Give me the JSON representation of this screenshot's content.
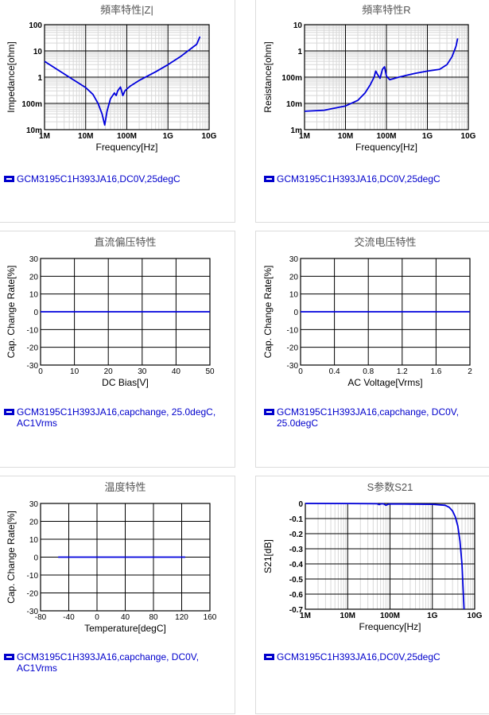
{
  "colors": {
    "curve": "#0000dd",
    "grid": "#d8d8d8",
    "majorgrid": "#000000",
    "legend": "#0000cc"
  },
  "chart_data": [
    {
      "id": "impedance",
      "type": "line",
      "title": "頻率特性|Z|",
      "xlabel": "Frequency[Hz]",
      "ylabel": "Impedance[ohm]",
      "xscale": "log",
      "yscale": "log",
      "xlim": [
        1000000,
        10000000000
      ],
      "ylim": [
        0.01,
        100
      ],
      "xticks": [
        "1M",
        "10M",
        "100M",
        "1G",
        "10G"
      ],
      "yticks": [
        "100",
        "10",
        "1",
        "100m",
        "10m"
      ],
      "grid": true,
      "legend": "GCM3195C1H393JA16,DC0V,25degC",
      "series": [
        {
          "x": [
            1000000.0,
            2000000.0,
            5000000.0,
            10000000.0,
            15000000.0,
            20000000.0,
            25000000.0,
            29000000.0,
            33000000.0,
            40000000.0,
            50000000.0,
            55000000.0,
            60000000.0,
            70000000.0,
            80000000.0,
            90000000.0,
            100000000.0,
            120000000.0,
            200000000.0,
            500000000.0,
            1000000000.0,
            2000000000.0,
            5000000000.0,
            6000000000.0
          ],
          "y": [
            4,
            2,
            0.8,
            0.4,
            0.22,
            0.1,
            0.04,
            0.015,
            0.05,
            0.15,
            0.25,
            0.2,
            0.3,
            0.42,
            0.2,
            0.3,
            0.35,
            0.45,
            0.75,
            1.6,
            3,
            6,
            18,
            35
          ]
        }
      ]
    },
    {
      "id": "resistance",
      "type": "line",
      "title": "頻率特性R",
      "xlabel": "Frequency[Hz]",
      "ylabel": "Resistance[ohm]",
      "xscale": "log",
      "yscale": "log",
      "xlim": [
        1000000,
        10000000000
      ],
      "ylim": [
        0.001,
        10
      ],
      "xticks": [
        "1M",
        "10M",
        "100M",
        "1G",
        "10G"
      ],
      "yticks": [
        "10",
        "1",
        "100m",
        "10m",
        "1m"
      ],
      "grid": true,
      "legend": "GCM3195C1H393JA16,DC0V,25degC",
      "series": [
        {
          "x": [
            1000000.0,
            3000000.0,
            10000000.0,
            20000000.0,
            30000000.0,
            40000000.0,
            50000000.0,
            55000000.0,
            60000000.0,
            70000000.0,
            80000000.0,
            90000000.0,
            100000000.0,
            120000000.0,
            200000000.0,
            500000000.0,
            1000000000.0,
            2000000000.0,
            3000000000.0,
            4000000000.0,
            5000000000.0,
            5500000000.0
          ],
          "y": [
            0.005,
            0.0055,
            0.008,
            0.013,
            0.025,
            0.05,
            0.1,
            0.17,
            0.13,
            0.09,
            0.2,
            0.25,
            0.11,
            0.08,
            0.1,
            0.14,
            0.17,
            0.2,
            0.3,
            0.6,
            1.5,
            3
          ]
        }
      ]
    },
    {
      "id": "dcbias",
      "type": "line",
      "title": "直流偏压特性",
      "xlabel": "DC Bias[V]",
      "ylabel": "Cap. Change Rate[%]",
      "xlim": [
        0,
        50
      ],
      "ylim": [
        -30,
        30
      ],
      "xticks": [
        "0",
        "10",
        "20",
        "30",
        "40",
        "50"
      ],
      "yticks": [
        "30",
        "20",
        "10",
        "0",
        "-10",
        "-20",
        "-30"
      ],
      "grid": true,
      "legend": "GCM3195C1H393JA16,capchange, 25.0degC, AC1Vrms",
      "series": [
        {
          "x": [
            0,
            50
          ],
          "y": [
            0,
            0
          ]
        }
      ]
    },
    {
      "id": "acvoltage",
      "type": "line",
      "title": "交流电压特性",
      "xlabel": "AC Voltage[Vrms]",
      "ylabel": "Cap. Change Rate[%]",
      "xlim": [
        0,
        2
      ],
      "ylim": [
        -30,
        30
      ],
      "xticks": [
        "0",
        "0.4",
        "0.8",
        "1.2",
        "1.6",
        "2"
      ],
      "yticks": [
        "30",
        "20",
        "10",
        "0",
        "-10",
        "-20",
        "-30"
      ],
      "grid": true,
      "legend": "GCM3195C1H393JA16,capchange, DC0V, 25.0degC",
      "series": [
        {
          "x": [
            0,
            2
          ],
          "y": [
            0,
            0
          ]
        }
      ]
    },
    {
      "id": "temperature",
      "type": "line",
      "title": "温度特性",
      "xlabel": "Temperature[degC]",
      "ylabel": "Cap. Change Rate[%]",
      "xlim": [
        -80,
        160
      ],
      "ylim": [
        -30,
        30
      ],
      "xticks": [
        "-80",
        "-40",
        "0",
        "40",
        "80",
        "120",
        "160"
      ],
      "yticks": [
        "30",
        "20",
        "10",
        "0",
        "-10",
        "-20",
        "-30"
      ],
      "grid": true,
      "legend": "GCM3195C1H393JA16,capchange, DC0V, AC1Vrms",
      "series": [
        {
          "x": [
            -55,
            125
          ],
          "y": [
            0,
            0
          ]
        }
      ]
    },
    {
      "id": "s21",
      "type": "line",
      "title": "S参数S21",
      "xlabel": "Frequency[Hz]",
      "ylabel": "S21[dB]",
      "xscale": "log",
      "xlim": [
        1000000,
        10000000000
      ],
      "ylim": [
        -0.7,
        0
      ],
      "xticks": [
        "1M",
        "10M",
        "100M",
        "1G",
        "10G"
      ],
      "yticks": [
        "0",
        "-0.1",
        "-0.2",
        "-0.3",
        "-0.4",
        "-0.5",
        "-0.6",
        "-0.7"
      ],
      "grid": true,
      "legend": "GCM3195C1H393JA16,DC0V,25degC",
      "series": [
        {
          "x": [
            1000000.0,
            10000000.0,
            50000000.0,
            55000000.0,
            60000000.0,
            70000000.0,
            80000000.0,
            90000000.0,
            100000000.0,
            300000000.0,
            1000000000.0,
            2000000000.0,
            2500000000.0,
            3000000000.0,
            3500000000.0,
            4000000000.0,
            4500000000.0,
            5000000000.0,
            5300000000.0,
            5600000000.0
          ],
          "y": [
            0,
            -0.0005,
            -0.002,
            -0.008,
            -0.003,
            -0.002,
            -0.012,
            -0.006,
            -0.003,
            -0.004,
            -0.006,
            -0.012,
            -0.025,
            -0.05,
            -0.09,
            -0.15,
            -0.25,
            -0.4,
            -0.55,
            -0.7
          ]
        }
      ]
    }
  ]
}
